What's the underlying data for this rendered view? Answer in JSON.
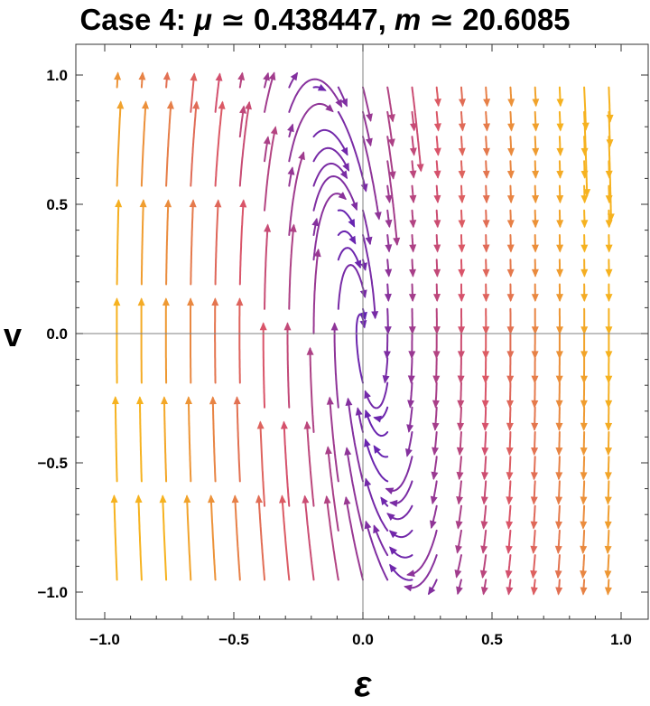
{
  "chart_data": {
    "type": "streamplot",
    "title": {
      "prefix": "Case 4: ",
      "mu_symbol": "μ",
      "mu_value": " ≃ 0.438447, ",
      "m_symbol": "m",
      "m_value": " ≃ 20.6085"
    },
    "xlabel": "ε",
    "ylabel": "v",
    "xlim": [
      -1.0,
      1.0
    ],
    "ylim": [
      -1.0,
      1.0
    ],
    "x_ticks": [
      "−1.0",
      "−0.5",
      "0.0",
      "0.5",
      "1.0"
    ],
    "y_ticks": [
      "1.0",
      "0.5",
      "0.0",
      "−0.5",
      "−1.0"
    ],
    "x_tick_values": [
      -1.0,
      -0.5,
      0.0,
      0.5,
      1.0
    ],
    "y_tick_values": [
      1.0,
      0.5,
      0.0,
      -0.5,
      -1.0
    ],
    "fixed_point": [
      0.0,
      0.0
    ],
    "vector_field": {
      "dx_dt": "v",
      "dv_dt": "-m*eps - 2*sqrt(m)*mu*v"
    },
    "parameters": {
      "mu": 0.438447,
      "m": 20.6085
    },
    "color_scheme": {
      "slow": "#f6b21f",
      "medium": "#d9536a",
      "fast": "#5e20b6"
    },
    "axes_through_origin": true,
    "frame": true,
    "grid": false
  }
}
